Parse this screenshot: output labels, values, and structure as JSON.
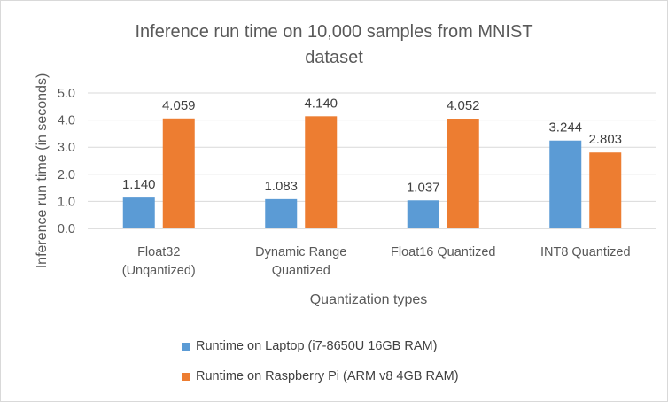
{
  "chart_data": {
    "type": "bar",
    "title": "Inference run time on 10,000 samples from MNIST dataset",
    "title_lines": [
      "Inference run time on 10,000 samples from MNIST",
      "dataset"
    ],
    "xlabel": "Quantization types",
    "ylabel": "Inference run time (in seconds)",
    "ylim": [
      0,
      5
    ],
    "yticks": [
      "0.0",
      "1.0",
      "2.0",
      "3.0",
      "4.0",
      "5.0"
    ],
    "grid": true,
    "legend_position": "bottom",
    "categories": [
      {
        "label": "Float32 (Unqantized)",
        "lines": [
          "Float32",
          "(Unqantized)"
        ]
      },
      {
        "label": "Dynamic Range Quantized",
        "lines": [
          "Dynamic Range",
          "Quantized"
        ]
      },
      {
        "label": "Float16 Quantized",
        "lines": [
          "Float16 Quantized"
        ]
      },
      {
        "label": "INT8 Quantized",
        "lines": [
          "INT8 Quantized"
        ]
      }
    ],
    "series": [
      {
        "name": "Runtime on Laptop (i7-8650U 16GB RAM)",
        "color": "#5b9bd5",
        "values": [
          1.14,
          1.083,
          1.037,
          3.244
        ],
        "value_labels": [
          "1.140",
          "1.083",
          "1.037",
          "3.244"
        ]
      },
      {
        "name": "Runtime on Raspberry Pi (ARM v8 4GB RAM)",
        "color": "#ed7d31",
        "values": [
          4.059,
          4.14,
          4.052,
          2.803
        ],
        "value_labels": [
          "4.059",
          "4.140",
          "4.052",
          "2.803"
        ]
      }
    ]
  }
}
